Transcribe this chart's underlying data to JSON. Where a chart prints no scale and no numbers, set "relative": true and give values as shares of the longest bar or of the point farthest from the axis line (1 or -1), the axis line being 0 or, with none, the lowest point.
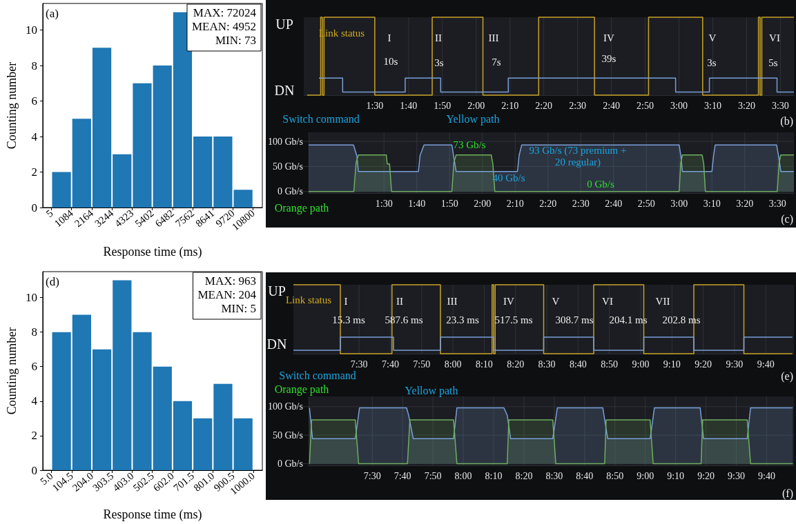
{
  "chart_data": [
    {
      "type": "histogram",
      "xlabel": "Response time (ms)",
      "ylabel": "Counting number",
      "color": "#1f77b4",
      "bins": [
        5,
        1084,
        2164,
        3244,
        4323,
        5402,
        6482,
        7562,
        8641,
        9720,
        10800
      ],
      "values": [
        2,
        5,
        9,
        3,
        7,
        8,
        11,
        4,
        4,
        1
      ],
      "xlim": [
        -460,
        11290
      ],
      "xticks": [
        5,
        1084,
        2164,
        3244,
        4323,
        5402,
        6482,
        7562,
        8641,
        9720,
        10800
      ],
      "ylim": [
        0,
        11.5
      ],
      "yticks": [
        0,
        2,
        4,
        6,
        8,
        10
      ],
      "annotations": [
        "(a)",
        "MAX: 72024",
        "MEAN: 4952",
        "MIN: 73"
      ]
    },
    {
      "type": "step",
      "grid": "x",
      "relative": true,
      "series": [
        {
          "color": "#c9a227",
          "x": [
            70,
            74,
            74.5,
            75,
            90,
            107,
            122,
            138.5,
            155,
            171,
            187,
            203.5,
            204,
            204.5,
            214
          ],
          "values": [
            0,
            1,
            0,
            1,
            0,
            1,
            0,
            1,
            0,
            1,
            0,
            1,
            0,
            1,
            1
          ]
        },
        {
          "color": "#7a9fd9",
          "x": [
            73.5,
            80.5,
            99,
            109.5,
            129.5,
            179,
            189,
            209,
            214
          ],
          "values": [
            0.22,
            0.04,
            0.22,
            0.04,
            0.22,
            0.04,
            0.22,
            0.04,
            0.04
          ]
        }
      ],
      "xlim": [
        69,
        214
      ],
      "xticks": [
        {
          "value": 90,
          "label": "1:30"
        },
        {
          "value": 100,
          "label": "1:40"
        },
        {
          "value": 110,
          "label": "1:50"
        },
        {
          "value": 120,
          "label": "2:00"
        },
        {
          "value": 130,
          "label": "2:10"
        },
        {
          "value": 140,
          "label": "2:20"
        },
        {
          "value": 150,
          "label": "2:30"
        },
        {
          "value": 160,
          "label": "2:40"
        },
        {
          "value": 170,
          "label": "2:50"
        },
        {
          "value": 180,
          "label": "3:00"
        },
        {
          "value": 190,
          "label": "3:10"
        },
        {
          "value": 200,
          "label": "3:20"
        },
        {
          "value": 210,
          "label": "3:30"
        }
      ],
      "annotations": [
        "UP",
        "DN",
        "Link status",
        "I",
        "10s",
        "II",
        "3s",
        "III",
        "7s",
        "IV",
        "39s",
        "V",
        "3s",
        "VI",
        "5s",
        "Switch command",
        "Yellow path",
        "(b)"
      ]
    },
    {
      "type": "area",
      "grid": true,
      "series": [
        {
          "color": "#7a9fd9",
          "x": [
            67,
            80.7,
            81.7,
            82.2,
            100.5,
            101,
            102.2,
            110.7,
            111.2,
            112,
            130.7,
            131.2,
            132,
            180,
            180.5,
            181,
            190,
            190.5,
            191,
            209.7,
            210.3,
            211,
            215
          ],
          "values": [
            93,
            93,
            72,
            40,
            40,
            72,
            93,
            93,
            72,
            40,
            40,
            72,
            93,
            93,
            72,
            40,
            40,
            72,
            93,
            93,
            72,
            40,
            40
          ]
        },
        {
          "color": "#6fae5f",
          "x": [
            67,
            80.8,
            81.5,
            82.2,
            90.7,
            91,
            91.7,
            92.3,
            110.7,
            111.3,
            112,
            122.7,
            123.2,
            123.8,
            180,
            180.5,
            181,
            187,
            187.5,
            188,
            209.9,
            210.5,
            211,
            215
          ],
          "values": [
            0,
            0,
            58,
            73,
            73,
            55,
            55,
            0,
            0,
            58,
            73,
            73,
            55,
            0,
            0,
            58,
            73,
            73,
            55,
            0,
            0,
            58,
            73,
            73
          ]
        }
      ],
      "xlim": [
        67,
        215
      ],
      "xticks": [
        {
          "value": 90,
          "label": "1:30"
        },
        {
          "value": 100,
          "label": "1:40"
        },
        {
          "value": 110,
          "label": "1:50"
        },
        {
          "value": 120,
          "label": "2:00"
        },
        {
          "value": 130,
          "label": "2:10"
        },
        {
          "value": 140,
          "label": "2:20"
        },
        {
          "value": 150,
          "label": "2:30"
        },
        {
          "value": 160,
          "label": "2:40"
        },
        {
          "value": 170,
          "label": "2:50"
        },
        {
          "value": 180,
          "label": "3:00"
        },
        {
          "value": 190,
          "label": "3:10"
        },
        {
          "value": 200,
          "label": "3:20"
        },
        {
          "value": 210,
          "label": "3:30"
        }
      ],
      "ylim": [
        -3,
        118
      ],
      "yticks": [
        {
          "value": 0,
          "label": "0 Gb/s"
        },
        {
          "value": 50,
          "label": "50 Gb/s"
        },
        {
          "value": 100,
          "label": "100 Gb/s"
        }
      ],
      "annotations": [
        "73 Gb/s",
        "93 Gb/s (73 premium +\n20 regular)",
        "40 Gb/s",
        "0 Gb/s",
        "Orange path",
        "(c)"
      ]
    },
    {
      "type": "histogram",
      "xlabel": "Response time (ms)",
      "ylabel": "Counting number",
      "color": "#1f77b4",
      "bins": [
        5,
        104.5,
        204,
        303.5,
        403,
        502.5,
        602,
        701.5,
        801,
        900.5,
        1000
      ],
      "values": [
        8,
        9,
        7,
        11,
        8,
        6,
        4,
        3,
        5,
        3
      ],
      "xlim": [
        -38,
        1045
      ],
      "xticks": [
        {
          "value": 5,
          "label": "5.0"
        },
        104.5,
        {
          "value": 204,
          "label": "204.0"
        },
        303.5,
        {
          "value": 403,
          "label": "403.0"
        },
        502.5,
        {
          "value": 602,
          "label": "602.0"
        },
        701.5,
        {
          "value": 801,
          "label": "801.0"
        },
        900.5,
        {
          "value": 1000,
          "label": "1000.0"
        }
      ],
      "ylim": [
        0,
        11.5
      ],
      "yticks": [
        0,
        2,
        4,
        6,
        8,
        10
      ],
      "annotations": [
        "(d)",
        "MAX: 963",
        "MEAN: 204",
        "MIN: 5"
      ]
    },
    {
      "type": "step",
      "grid": "x",
      "relative": true,
      "series": [
        {
          "color": "#c9a227",
          "x": [
            429,
            444,
            460.5,
            476,
            492.5,
            493,
            493.5,
            509,
            525,
            541,
            557,
            573,
            588.5
          ],
          "values": [
            1,
            0,
            1,
            0,
            1,
            0,
            1,
            0,
            1,
            0,
            1,
            0,
            0
          ]
        },
        {
          "color": "#7a9fd9",
          "x": [
            429,
            444,
            461,
            476,
            493,
            509,
            525,
            541,
            557,
            573,
            588.5
          ],
          "values": [
            0.05,
            0.24,
            0.05,
            0.24,
            0.05,
            0.24,
            0.05,
            0.24,
            0.05,
            0.24,
            0.24
          ]
        }
      ],
      "xlim": [
        429,
        589
      ],
      "xticks": [
        {
          "value": 450,
          "label": "7:30"
        },
        {
          "value": 460,
          "label": "7:40"
        },
        {
          "value": 470,
          "label": "7:50"
        },
        {
          "value": 480,
          "label": "8:00"
        },
        {
          "value": 490,
          "label": "8:10"
        },
        {
          "value": 500,
          "label": "8:20"
        },
        {
          "value": 510,
          "label": "8:30"
        },
        {
          "value": 520,
          "label": "8:40"
        },
        {
          "value": 530,
          "label": "8:50"
        },
        {
          "value": 540,
          "label": "9:00"
        },
        {
          "value": 550,
          "label": "9:10"
        },
        {
          "value": 560,
          "label": "9:20"
        },
        {
          "value": 570,
          "label": "9:30"
        },
        {
          "value": 580,
          "label": "9:40"
        }
      ],
      "annotations": [
        "UP",
        "DN",
        "Link status",
        "I",
        "15.3 ms",
        "II",
        "587.6 ms",
        "III",
        "23.3 ms",
        "IV",
        "517.5 ms",
        "V",
        "308.7 ms",
        "VI",
        "204.1 ms",
        "VII",
        "202.8 ms",
        "Switch command",
        "(e)"
      ]
    },
    {
      "type": "area",
      "grid": true,
      "series": [
        {
          "color": "#7a9fd9",
          "x": [
            429.3,
            430.3,
            444.4,
            445.8,
            461.3,
            462,
            463.5,
            476.8,
            477.9,
            493.4,
            494.5,
            495.6,
            509.5,
            511,
            526,
            527.6,
            541.6,
            543,
            558.1,
            559.2,
            573.6,
            574.7,
            588.6
          ],
          "values": [
            98,
            44,
            44,
            98,
            98,
            85,
            44,
            44,
            98,
            98,
            85,
            44,
            44,
            98,
            98,
            44,
            44,
            98,
            98,
            44,
            44,
            98,
            98
          ]
        },
        {
          "color": "#6fae5f",
          "x": [
            429.3,
            430,
            444.4,
            445.5,
            461.6,
            462.4,
            476.8,
            477.9,
            494.5,
            495,
            509.5,
            510.5,
            526.6,
            527.1,
            541.6,
            542.6,
            558.4,
            558.9,
            573.6,
            574.7,
            588.6
          ],
          "values": [
            0,
            77,
            77,
            0,
            0,
            77,
            77,
            0,
            0,
            77,
            77,
            0,
            0,
            77,
            77,
            0,
            0,
            77,
            77,
            0,
            0
          ]
        }
      ],
      "xlim": [
        429,
        589
      ],
      "xticks": [
        {
          "value": 450,
          "label": "7:30"
        },
        {
          "value": 460,
          "label": "7:40"
        },
        {
          "value": 470,
          "label": "7:50"
        },
        {
          "value": 480,
          "label": "8:00"
        },
        {
          "value": 490,
          "label": "8:10"
        },
        {
          "value": 500,
          "label": "8:20"
        },
        {
          "value": 510,
          "label": "8:30"
        },
        {
          "value": 520,
          "label": "8:40"
        },
        {
          "value": 530,
          "label": "8:50"
        },
        {
          "value": 540,
          "label": "9:00"
        },
        {
          "value": 550,
          "label": "9:10"
        },
        {
          "value": 560,
          "label": "9:20"
        },
        {
          "value": 570,
          "label": "9:30"
        },
        {
          "value": 580,
          "label": "9:40"
        }
      ],
      "ylim": [
        -3,
        118
      ],
      "yticks": [
        {
          "value": 0,
          "label": "0 Gb/s"
        },
        {
          "value": 50,
          "label": "50 Gb/s"
        },
        {
          "value": 100,
          "label": "100 Gb/s"
        }
      ],
      "annotations": [
        "Orange path",
        "Yellow path",
        "(f)"
      ]
    }
  ]
}
